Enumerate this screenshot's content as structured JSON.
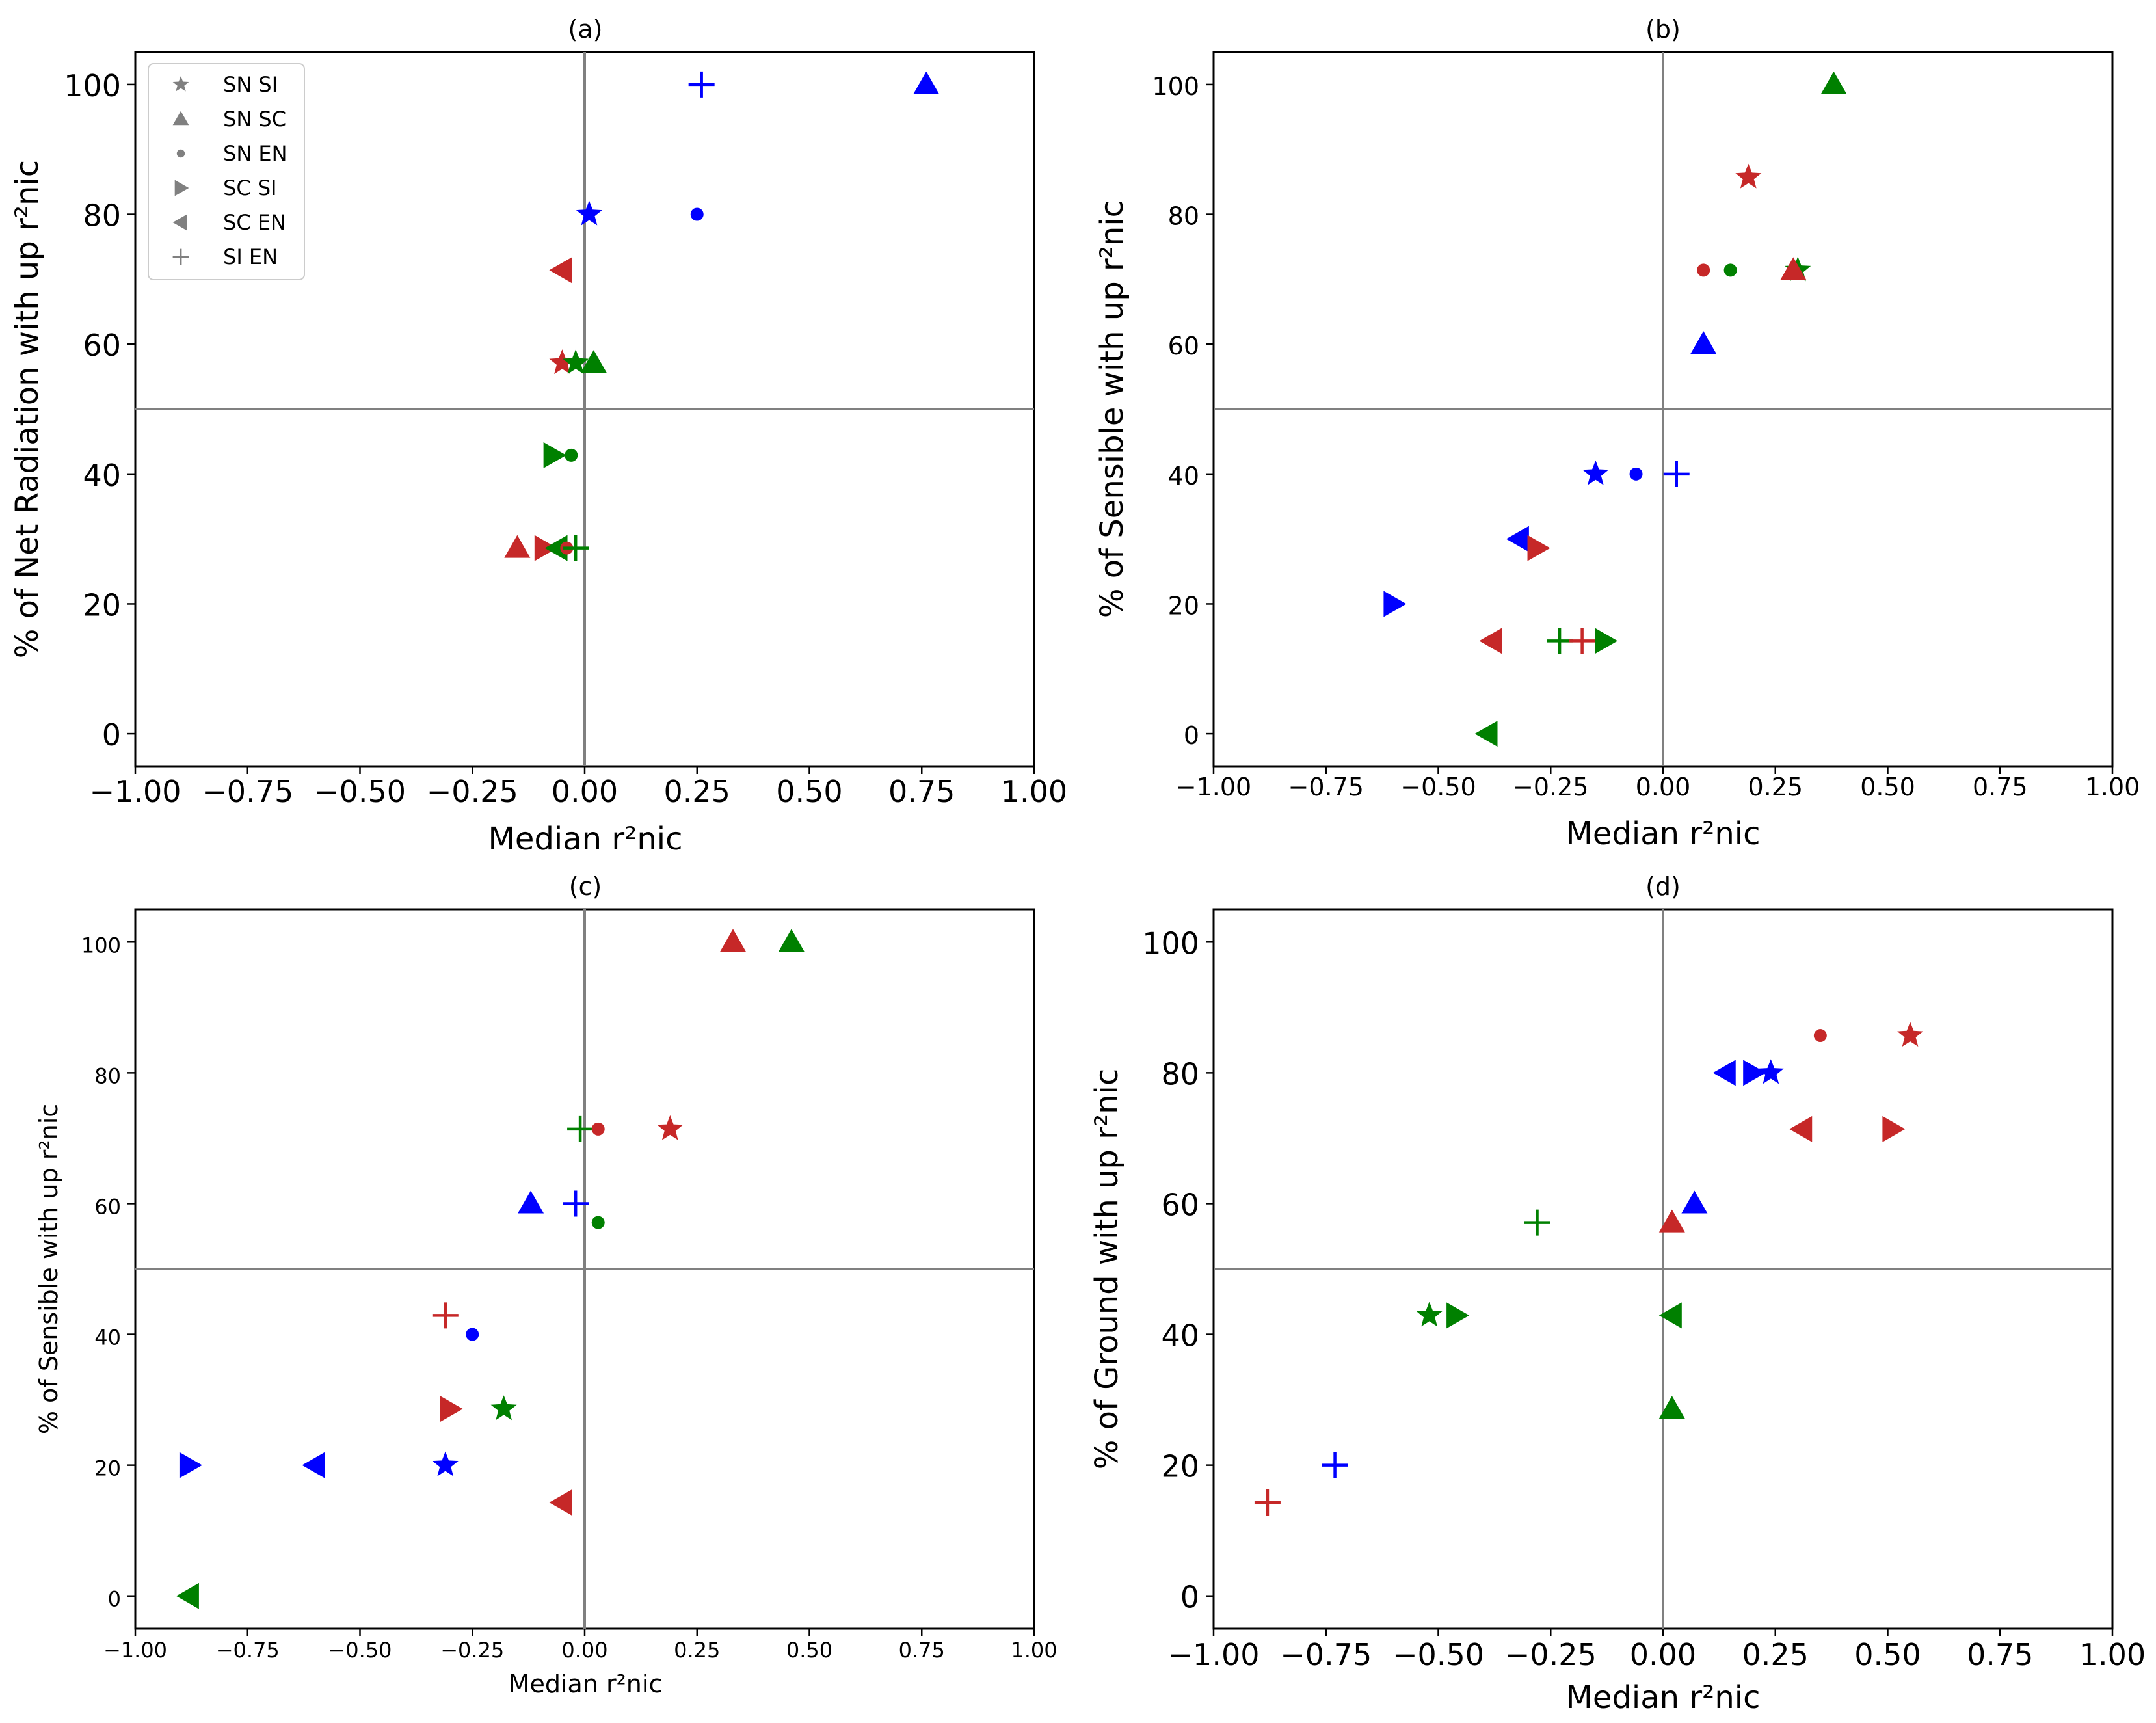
{
  "figure": {
    "colors": {
      "blue": "#0000ff",
      "red": "#c62828",
      "green": "#008000",
      "grey": "#808080",
      "legend_grey": "#808080"
    },
    "legend": [
      {
        "marker": "star",
        "label": "SN SI"
      },
      {
        "marker": "triangle-up",
        "label": "SN SC"
      },
      {
        "marker": "circle",
        "label": "SN EN"
      },
      {
        "marker": "triangle-right",
        "label": "SC SI"
      },
      {
        "marker": "triangle-left",
        "label": "SC EN"
      },
      {
        "marker": "plus",
        "label": "SI EN"
      }
    ]
  },
  "chart_data": [
    {
      "panel": "(a)",
      "type": "scatter",
      "title": "(a)",
      "xlabel": "Median r²nic",
      "ylabel": "% of Net Radiation with up r²nic",
      "xlim": [
        -1.0,
        1.0
      ],
      "ylim": [
        -5,
        105
      ],
      "xticks": [
        "−1.00",
        "−0.75",
        "−0.50",
        "−0.25",
        "0.00",
        "0.25",
        "0.50",
        "0.75",
        "1.00"
      ],
      "yticks": [
        "0",
        "20",
        "40",
        "60",
        "80",
        "100"
      ],
      "reference_lines": {
        "x": 0,
        "y": 50
      },
      "points": [
        {
          "marker": "plus",
          "color": "blue",
          "x": 0.26,
          "y": 100
        },
        {
          "marker": "triangle-up",
          "color": "blue",
          "x": 0.76,
          "y": 100
        },
        {
          "marker": "star",
          "color": "blue",
          "x": 0.01,
          "y": 80
        },
        {
          "marker": "circle",
          "color": "blue",
          "x": 0.25,
          "y": 80
        },
        {
          "marker": "triangle-left",
          "color": "red",
          "x": -0.05,
          "y": 71.4
        },
        {
          "marker": "star",
          "color": "red",
          "x": -0.05,
          "y": 57.1
        },
        {
          "marker": "star",
          "color": "green",
          "x": -0.02,
          "y": 57.1
        },
        {
          "marker": "triangle-up",
          "color": "green",
          "x": 0.02,
          "y": 57.1
        },
        {
          "marker": "triangle-right",
          "color": "green",
          "x": -0.07,
          "y": 42.9
        },
        {
          "marker": "circle",
          "color": "green",
          "x": -0.03,
          "y": 42.9
        },
        {
          "marker": "triangle-up",
          "color": "red",
          "x": -0.15,
          "y": 28.6
        },
        {
          "marker": "triangle-right",
          "color": "red",
          "x": -0.09,
          "y": 28.6
        },
        {
          "marker": "triangle-left",
          "color": "green",
          "x": -0.06,
          "y": 28.6
        },
        {
          "marker": "circle",
          "color": "red",
          "x": -0.04,
          "y": 28.6
        },
        {
          "marker": "plus",
          "color": "green",
          "x": -0.02,
          "y": 28.6
        }
      ]
    },
    {
      "panel": "(b)",
      "type": "scatter",
      "title": "(b)",
      "xlabel": "Median r²nic",
      "ylabel": "% of Sensible with up r²nic",
      "xlim": [
        -1.0,
        1.0
      ],
      "ylim": [
        -5,
        105
      ],
      "xticks": [
        "−1.00",
        "−0.75",
        "−0.50",
        "−0.25",
        "0.00",
        "0.25",
        "0.50",
        "0.75",
        "1.00"
      ],
      "yticks": [
        "0",
        "20",
        "40",
        "60",
        "80",
        "100"
      ],
      "reference_lines": {
        "x": 0,
        "y": 50
      },
      "points": [
        {
          "marker": "triangle-up",
          "color": "green",
          "x": 0.38,
          "y": 100
        },
        {
          "marker": "star",
          "color": "red",
          "x": 0.19,
          "y": 85.7
        },
        {
          "marker": "circle",
          "color": "red",
          "x": 0.09,
          "y": 71.4
        },
        {
          "marker": "circle",
          "color": "green",
          "x": 0.15,
          "y": 71.4
        },
        {
          "marker": "star",
          "color": "green",
          "x": 0.3,
          "y": 71.4
        },
        {
          "marker": "triangle-up",
          "color": "red",
          "x": 0.29,
          "y": 71.4
        },
        {
          "marker": "triangle-up",
          "color": "blue",
          "x": 0.09,
          "y": 60
        },
        {
          "marker": "star",
          "color": "blue",
          "x": -0.15,
          "y": 40
        },
        {
          "marker": "circle",
          "color": "blue",
          "x": -0.06,
          "y": 40
        },
        {
          "marker": "plus",
          "color": "blue",
          "x": 0.03,
          "y": 40
        },
        {
          "marker": "triangle-left",
          "color": "blue",
          "x": -0.32,
          "y": 30
        },
        {
          "marker": "triangle-right",
          "color": "red",
          "x": -0.28,
          "y": 28.6
        },
        {
          "marker": "triangle-right",
          "color": "blue",
          "x": -0.6,
          "y": 20
        },
        {
          "marker": "triangle-left",
          "color": "red",
          "x": -0.38,
          "y": 14.3
        },
        {
          "marker": "plus",
          "color": "green",
          "x": -0.23,
          "y": 14.3
        },
        {
          "marker": "plus",
          "color": "red",
          "x": -0.18,
          "y": 14.3
        },
        {
          "marker": "triangle-right",
          "color": "green",
          "x": -0.13,
          "y": 14.3
        },
        {
          "marker": "triangle-left",
          "color": "green",
          "x": -0.39,
          "y": 0
        }
      ]
    },
    {
      "panel": "(c)",
      "type": "scatter",
      "title": "(c)",
      "xlabel": "Median r²nic",
      "ylabel": "% of Sensible with up r²nic",
      "xlim": [
        -1.0,
        1.0
      ],
      "ylim": [
        -5,
        105
      ],
      "xticks": [
        "−1.00",
        "−0.75",
        "−0.50",
        "−0.25",
        "0.00",
        "0.25",
        "0.50",
        "0.75",
        "1.00"
      ],
      "yticks": [
        "0",
        "20",
        "40",
        "60",
        "80",
        "100"
      ],
      "reference_lines": {
        "x": 0,
        "y": 50
      },
      "points": [
        {
          "marker": "triangle-up",
          "color": "red",
          "x": 0.33,
          "y": 100
        },
        {
          "marker": "triangle-up",
          "color": "green",
          "x": 0.46,
          "y": 100
        },
        {
          "marker": "plus",
          "color": "green",
          "x": -0.01,
          "y": 71.4
        },
        {
          "marker": "circle",
          "color": "red",
          "x": 0.03,
          "y": 71.4
        },
        {
          "marker": "star",
          "color": "red",
          "x": 0.19,
          "y": 71.4
        },
        {
          "marker": "triangle-up",
          "color": "blue",
          "x": -0.12,
          "y": 60
        },
        {
          "marker": "plus",
          "color": "blue",
          "x": -0.02,
          "y": 60
        },
        {
          "marker": "circle",
          "color": "green",
          "x": 0.03,
          "y": 57.1
        },
        {
          "marker": "plus",
          "color": "red",
          "x": -0.31,
          "y": 42.9
        },
        {
          "marker": "circle",
          "color": "blue",
          "x": -0.25,
          "y": 40
        },
        {
          "marker": "triangle-right",
          "color": "red",
          "x": -0.3,
          "y": 28.6
        },
        {
          "marker": "star",
          "color": "green",
          "x": -0.18,
          "y": 28.6
        },
        {
          "marker": "triangle-right",
          "color": "blue",
          "x": -0.88,
          "y": 20
        },
        {
          "marker": "triangle-left",
          "color": "blue",
          "x": -0.6,
          "y": 20
        },
        {
          "marker": "star",
          "color": "blue",
          "x": -0.31,
          "y": 20
        },
        {
          "marker": "triangle-left",
          "color": "red",
          "x": -0.05,
          "y": 14.3
        },
        {
          "marker": "triangle-left",
          "color": "green",
          "x": -0.88,
          "y": 0
        }
      ]
    },
    {
      "panel": "(d)",
      "type": "scatter",
      "title": "(d)",
      "xlabel": "Median r²nic",
      "ylabel": "% of Ground with up r²nic",
      "xlim": [
        -1.0,
        1.0
      ],
      "ylim": [
        -5,
        105
      ],
      "xticks": [
        "−1.00",
        "−0.75",
        "−0.50",
        "−0.25",
        "0.00",
        "0.25",
        "0.50",
        "0.75",
        "1.00"
      ],
      "yticks": [
        "0",
        "20",
        "40",
        "60",
        "80",
        "100"
      ],
      "reference_lines": {
        "x": 0,
        "y": 50
      },
      "points": [
        {
          "marker": "circle",
          "color": "red",
          "x": 0.35,
          "y": 85.7
        },
        {
          "marker": "star",
          "color": "red",
          "x": 0.55,
          "y": 85.7
        },
        {
          "marker": "triangle-left",
          "color": "blue",
          "x": 0.14,
          "y": 80
        },
        {
          "marker": "triangle-right",
          "color": "blue",
          "x": 0.2,
          "y": 80
        },
        {
          "marker": "star",
          "color": "blue",
          "x": 0.24,
          "y": 80
        },
        {
          "marker": "triangle-left",
          "color": "red",
          "x": 0.31,
          "y": 71.4
        },
        {
          "marker": "triangle-right",
          "color": "red",
          "x": 0.51,
          "y": 71.4
        },
        {
          "marker": "triangle-up",
          "color": "blue",
          "x": 0.07,
          "y": 60
        },
        {
          "marker": "plus",
          "color": "green",
          "x": -0.28,
          "y": 57.1
        },
        {
          "marker": "triangle-up",
          "color": "red",
          "x": 0.02,
          "y": 57.1
        },
        {
          "marker": "star",
          "color": "green",
          "x": -0.52,
          "y": 42.9
        },
        {
          "marker": "triangle-right",
          "color": "green",
          "x": -0.46,
          "y": 42.9
        },
        {
          "marker": "triangle-left",
          "color": "green",
          "x": 0.02,
          "y": 42.9
        },
        {
          "marker": "triangle-up",
          "color": "green",
          "x": 0.02,
          "y": 28.6
        },
        {
          "marker": "plus",
          "color": "blue",
          "x": -0.73,
          "y": 20
        },
        {
          "marker": "plus",
          "color": "red",
          "x": -0.88,
          "y": 14.3
        }
      ]
    }
  ]
}
